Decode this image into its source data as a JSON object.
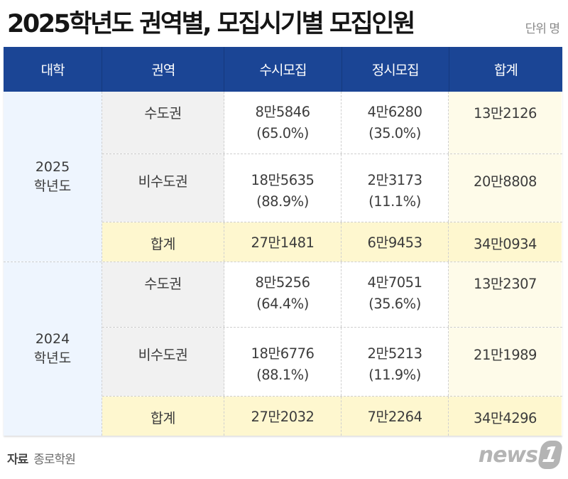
{
  "title": "2025학년도 권역별, 모집시기별 모집인원",
  "unit": "단위 명",
  "header": [
    "대학",
    "권역",
    "수시모집",
    "정시모집",
    "합계"
  ],
  "groups": [
    {
      "year": "2025",
      "year_suffix": "학년도",
      "rows": [
        {
          "region": "수도권",
          "susi": "8만5846",
          "susi_pct": "(65.0%)",
          "jeongsi": "4만6280",
          "jeongsi_pct": "(35.0%)",
          "total": "13만2126"
        },
        {
          "region": "비수도권",
          "susi": "18만5635",
          "susi_pct": "(88.9%)",
          "jeongsi": "2만3173",
          "jeongsi_pct": "(11.1%)",
          "total": "20만8808"
        },
        {
          "region": "합계",
          "susi": "27만1481",
          "jeongsi": "6만9453",
          "total": "34만0934"
        }
      ]
    },
    {
      "year": "2024",
      "year_suffix": "학년도",
      "rows": [
        {
          "region": "수도권",
          "susi": "8만5256",
          "susi_pct": "(64.4%)",
          "jeongsi": "4만7051",
          "jeongsi_pct": "(35.6%)",
          "total": "13만2307"
        },
        {
          "region": "비수도권",
          "susi": "18만6776",
          "susi_pct": "(88.1%)",
          "jeongsi": "2만5213",
          "jeongsi_pct": "(11.9%)",
          "total": "21만1989"
        },
        {
          "region": "합계",
          "susi": "27만2032",
          "jeongsi": "7만2264",
          "total": "34만4296"
        }
      ]
    }
  ],
  "footer": {
    "source_label": "자료",
    "source": "종로학원"
  },
  "logo": {
    "word": "news",
    "number": "1"
  },
  "colors": {
    "header_bg": "#1b4595",
    "year_bg": "#eef5fe",
    "region_bg": "#f1f1f1",
    "total_bg": "#fef7cf",
    "sum_col_bg": "#fefbe9"
  }
}
